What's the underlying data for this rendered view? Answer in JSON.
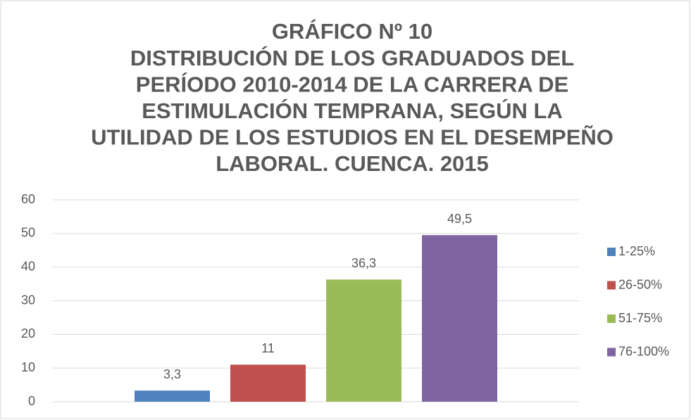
{
  "chart_data": {
    "type": "bar",
    "title": [
      "GRÁFICO Nº 10",
      "DISTRIBUCIÓN DE LOS GRADUADOS DEL",
      "PERÍODO 2010-2014 DE LA CARRERA DE",
      "ESTIMULACIÓN TEMPRANA, SEGÚN LA",
      "UTILIDAD DE LOS ESTUDIOS EN EL DESEMPEÑO",
      "LABORAL. CUENCA. 2015"
    ],
    "categories": [
      null
    ],
    "series": [
      {
        "name": "1-25%",
        "color": "#4f81bd",
        "values": [
          3.3
        ],
        "value_labels": [
          "3,3"
        ]
      },
      {
        "name": "26-50%",
        "color": "#c0504d",
        "values": [
          11
        ]
      },
      {
        "name": "51-75%",
        "color": "#9bbb59",
        "values": [
          36.3
        ],
        "value_labels": [
          "36,3"
        ]
      },
      {
        "name": "76-100%",
        "color": "#8064a2",
        "values": [
          49.5
        ],
        "value_labels": [
          "49,5"
        ]
      }
    ],
    "ylim": [
      0,
      60
    ],
    "yticks": [
      0,
      10,
      20,
      30,
      40,
      50,
      60
    ],
    "grid": true,
    "legend": "right"
  }
}
